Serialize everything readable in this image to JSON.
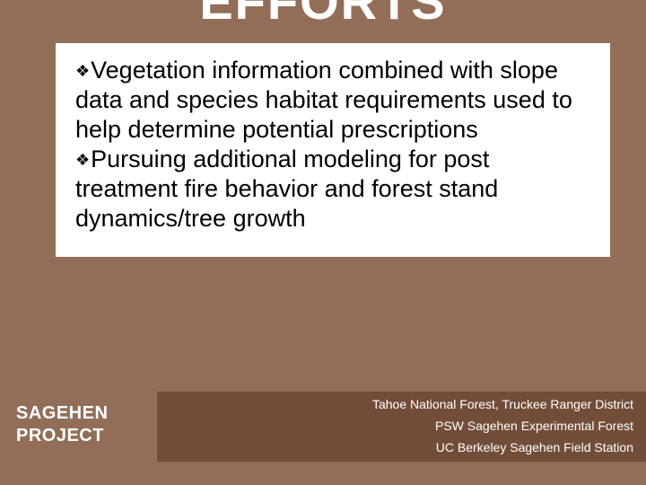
{
  "title": {
    "line2": "EFFORTS",
    "color": "#ffffff",
    "fontsize": 56
  },
  "content": {
    "background": "#ffffff",
    "text_color": "#000000",
    "fontsize": 27,
    "bullets": [
      "Vegetation information combined with slope data and species habitat requirements used to help determine potential prescriptions",
      "Pursuing additional modeling for post treatment fire behavior and forest stand dynamics/tree growth"
    ]
  },
  "footer": {
    "left": {
      "line1": "SAGEHEN",
      "line2": "PROJECT",
      "background": "#926e58",
      "color": "#ffffff"
    },
    "right": {
      "background": "#724d37",
      "color": "#ffffff",
      "lines": [
        "Tahoe National Forest, Truckee Ranger District",
        "PSW Sagehen Experimental Forest",
        "UC Berkeley Sagehen Field Station"
      ]
    }
  },
  "slide_background": "#926e58"
}
